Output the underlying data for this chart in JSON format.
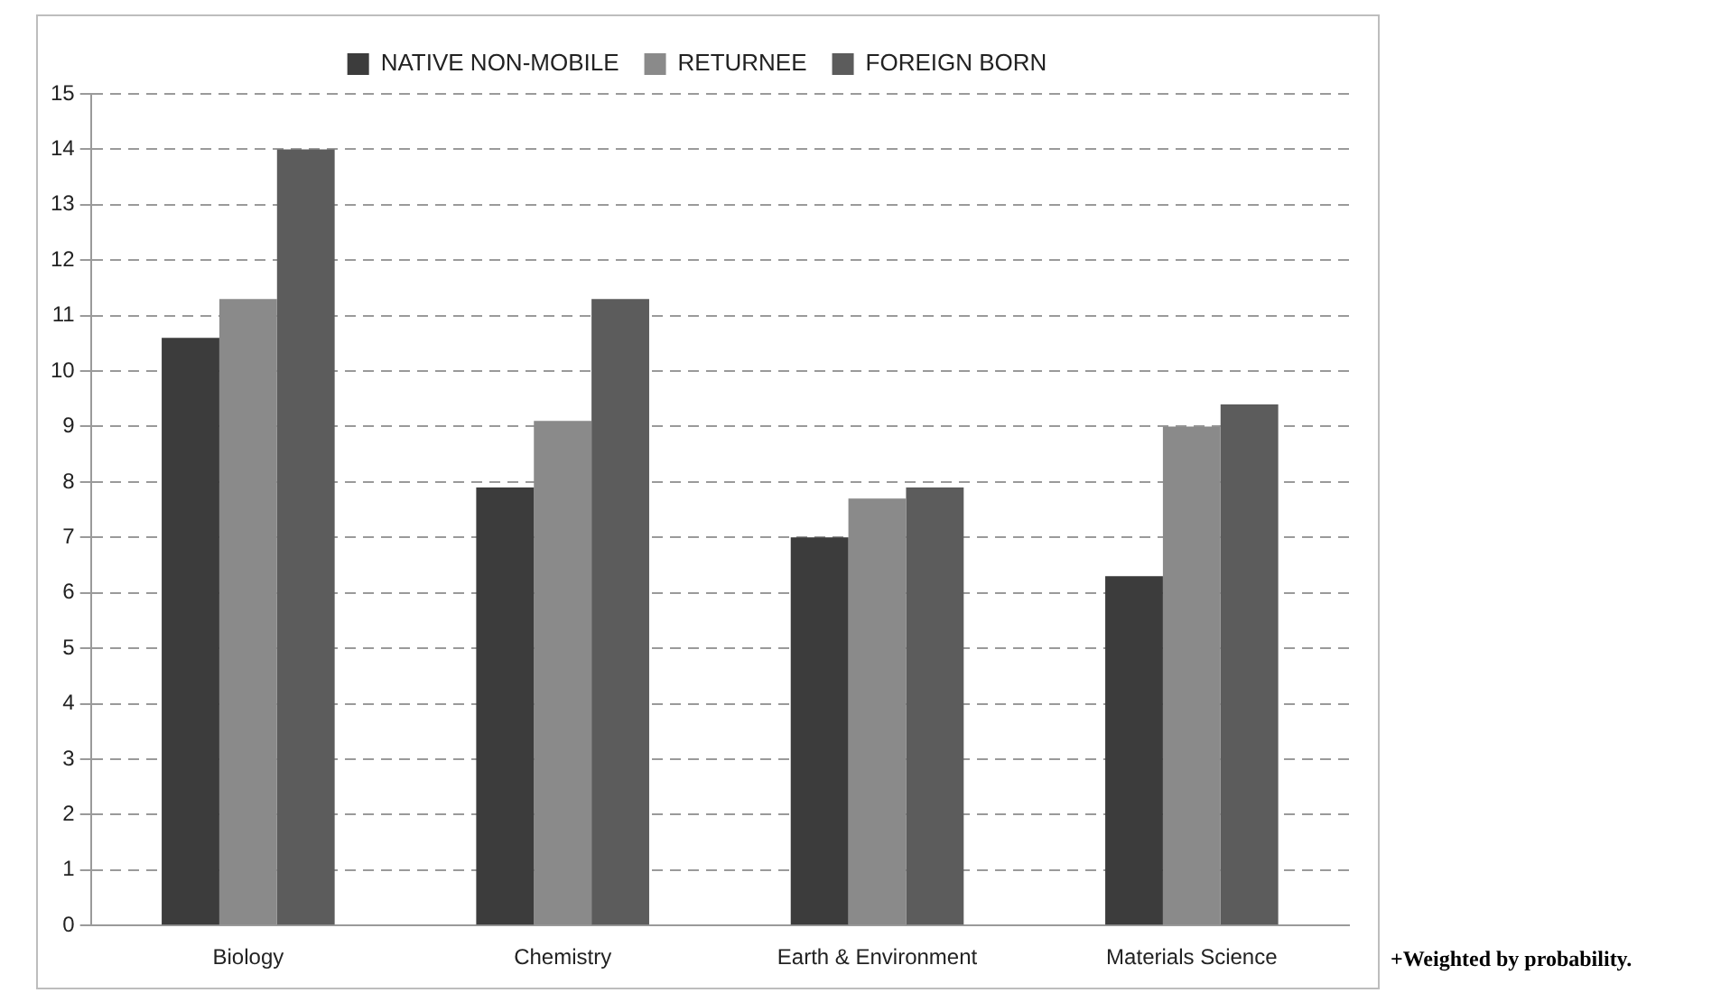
{
  "chart_data": {
    "type": "bar",
    "categories": [
      "Biology",
      "Chemistry",
      "Earth & Environment",
      "Materials Science"
    ],
    "series": [
      {
        "name": "NATIVE NON-MOBILE",
        "color": "#3c3c3c",
        "values": [
          10.6,
          7.9,
          7.0,
          6.3
        ]
      },
      {
        "name": "RETURNEE",
        "color": "#8a8a8a",
        "values": [
          11.3,
          9.1,
          7.7,
          9.0
        ]
      },
      {
        "name": "FOREIGN BORN",
        "color": "#5c5c5c",
        "values": [
          14.0,
          11.3,
          7.9,
          9.4
        ]
      }
    ],
    "ylim": [
      0,
      15
    ],
    "yticks": [
      0,
      1,
      2,
      3,
      4,
      5,
      6,
      7,
      8,
      9,
      10,
      11,
      12,
      13,
      14,
      15
    ],
    "grid": "y",
    "legend": "top",
    "annotations": [
      "+Weighted by probability."
    ]
  }
}
